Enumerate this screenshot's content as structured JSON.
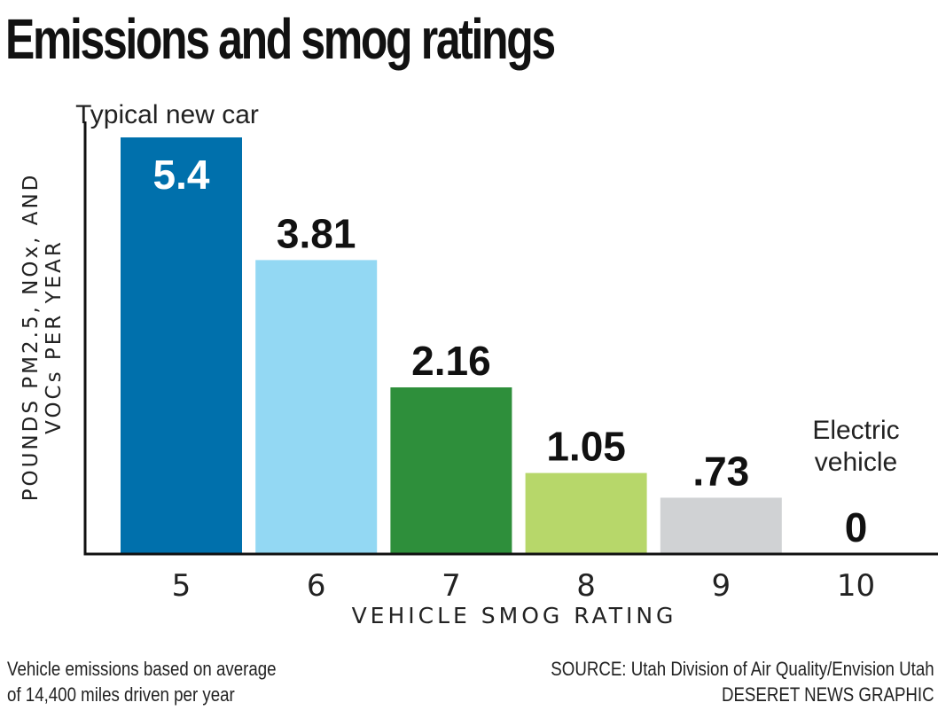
{
  "chart_data": {
    "type": "bar",
    "title": "Emissions and smog ratings",
    "ylabel": [
      "POUNDS PM2.5, NOx, AND",
      "VOCs PER YEAR"
    ],
    "xlabel": "VEHICLE SMOG RATING",
    "categories": [
      "5",
      "6",
      "7",
      "8",
      "9",
      "10"
    ],
    "values": [
      5.4,
      3.81,
      2.16,
      1.05,
      0.73,
      0
    ],
    "data_labels": [
      "5.4",
      "3.81",
      "2.16",
      "1.05",
      ".73",
      "0"
    ],
    "bar_colors": [
      "#0070ac",
      "#93d8f3",
      "#2e8f3b",
      "#b7d76a",
      "#d0d2d4",
      "#ffffff"
    ],
    "label_colors": [
      "#ffffff",
      "#111111",
      "#111111",
      "#111111",
      "#111111",
      "#111111"
    ],
    "label_inside": [
      true,
      false,
      false,
      false,
      false,
      false
    ],
    "ylim": [
      0,
      5.4
    ],
    "grid": false,
    "annotations": [
      {
        "category": "5",
        "text": [
          "Typical new car"
        ]
      },
      {
        "category": "10",
        "text": [
          "Electric",
          "vehicle"
        ]
      }
    ]
  },
  "footnote": [
    "Vehicle emissions based on average",
    "of 14,400 miles driven per year"
  ],
  "source": [
    "SOURCE: Utah Division of Air Quality/Envision Utah",
    "DESERET NEWS GRAPHIC"
  ]
}
